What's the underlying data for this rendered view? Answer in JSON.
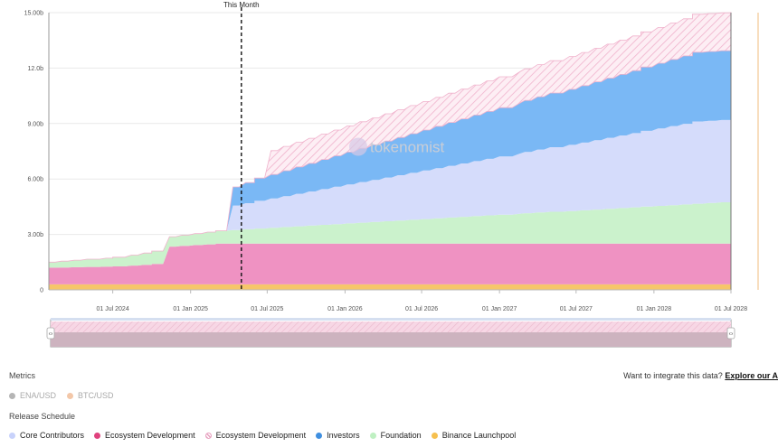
{
  "chart_data": {
    "type": "area",
    "stacked": true,
    "ylim": [
      0,
      15
    ],
    "y_ticks": [
      {
        "value": 0,
        "label": "0"
      },
      {
        "value": 3,
        "label": "3.00b"
      },
      {
        "value": 6,
        "label": "6.00b"
      },
      {
        "value": 9,
        "label": "9.00b"
      },
      {
        "value": 12,
        "label": "12.0b"
      },
      {
        "value": 15,
        "label": "15.00b"
      }
    ],
    "x_range": [
      "2024-02-01",
      "2028-07-01"
    ],
    "x_ticks": [
      {
        "date": "2024-07-01",
        "label": "01 Jul 2024"
      },
      {
        "date": "2025-01-01",
        "label": "01 Jan 2025"
      },
      {
        "date": "2025-07-01",
        "label": "01 Jul 2025"
      },
      {
        "date": "2026-01-01",
        "label": "01 Jan 2026"
      },
      {
        "date": "2026-07-01",
        "label": "01 Jul 2026"
      },
      {
        "date": "2027-01-01",
        "label": "01 Jan 2027"
      },
      {
        "date": "2027-07-01",
        "label": "01 Jul 2027"
      },
      {
        "date": "2028-01-01",
        "label": "01 Jan 2028"
      },
      {
        "date": "2028-07-01",
        "label": "01 Jul 2028"
      }
    ],
    "annotation": {
      "date": "2025-05-01",
      "label": "This Month"
    },
    "watermark": "tokenomist",
    "series": [
      {
        "name": "Binance Launchpool",
        "color": "#f6c66a",
        "points": [
          [
            "2024-02-01",
            0.3
          ],
          [
            "2028-07-01",
            0.3
          ]
        ]
      },
      {
        "name": "Ecosystem Development",
        "color": "#ef92c2",
        "points": [
          [
            "2024-02-01",
            0.9
          ],
          [
            "2024-07-01",
            0.97
          ],
          [
            "2024-10-01",
            1.1
          ],
          [
            "2024-10-02",
            2.0
          ],
          [
            "2025-03-01",
            2.2
          ],
          [
            "2028-07-01",
            2.2
          ]
        ]
      },
      {
        "name": "Foundation",
        "color": "#cbf2cc",
        "points": [
          [
            "2024-02-01",
            0.3
          ],
          [
            "2024-07-01",
            0.5
          ],
          [
            "2024-10-01",
            0.7
          ],
          [
            "2024-10-02",
            0.5
          ],
          [
            "2025-03-01",
            0.7
          ],
          [
            "2028-07-01",
            2.28
          ]
        ]
      },
      {
        "name": "Core Contributors",
        "color": "#d5dcfb",
        "points": [
          [
            "2025-03-01",
            0.0
          ],
          [
            "2025-03-02",
            1.24
          ],
          [
            "2028-04-01",
            4.45
          ],
          [
            "2028-07-01",
            4.45
          ]
        ]
      },
      {
        "name": "Investors",
        "color": "#7ab8f5",
        "points": [
          [
            "2025-03-01",
            0.0
          ],
          [
            "2025-03-02",
            0.89
          ],
          [
            "2025-06-01",
            1.23
          ],
          [
            "2028-04-01",
            3.75
          ],
          [
            "2028-07-01",
            3.75
          ]
        ]
      },
      {
        "name": "Ecosystem Development",
        "color": "#f4b3cf",
        "hatched": true,
        "points": [
          [
            "2025-06-01",
            0.0
          ],
          [
            "2025-06-02",
            1.27
          ],
          [
            "2027-12-01",
            1.9
          ],
          [
            "2028-04-01",
            2.05
          ],
          [
            "2028-07-01",
            2.05
          ]
        ]
      }
    ]
  },
  "range_slider": {
    "left_handle": "‹›",
    "right_handle": "‹›"
  },
  "metrics": {
    "title": "Metrics",
    "items": [
      {
        "label": "ENA/USD",
        "color": "#b5b5b5"
      },
      {
        "label": "BTC/USD",
        "color": "#f3c7a8"
      }
    ]
  },
  "integrate": {
    "text": "Want to integrate this data?",
    "link": "Explore our A"
  },
  "release_schedule": {
    "title": "Release Schedule",
    "items": [
      {
        "label": "Core Contributors",
        "color": "#c8d2fb",
        "hatched": false
      },
      {
        "label": "Ecosystem Development",
        "color": "#e0427e",
        "hatched": false
      },
      {
        "label": "Ecosystem Development",
        "color": "#e7a0bf",
        "hatched": true
      },
      {
        "label": "Investors",
        "color": "#3f8fe0",
        "hatched": false
      },
      {
        "label": "Foundation",
        "color": "#bff0c2",
        "hatched": false
      },
      {
        "label": "Binance Launchpool",
        "color": "#f6c04f",
        "hatched": false
      }
    ]
  }
}
